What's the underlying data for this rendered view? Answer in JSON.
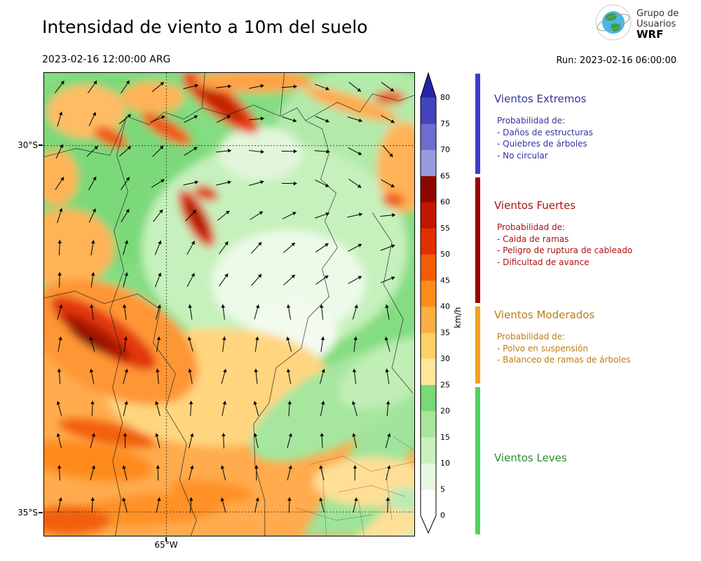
{
  "header": {
    "title": "Intensidad de viento a 10m del suelo",
    "valid_time": "2023-02-16 12:00:00 ARG",
    "run_label": "Run: 2023-02-16 06:00:00",
    "logo": {
      "line1": "Grupo de",
      "line2": "Usuarios",
      "line3": "WRF"
    }
  },
  "map": {
    "y_tick_labels": [
      "30°S",
      "35°S"
    ],
    "x_tick_label": "65°W"
  },
  "colorbar": {
    "unit": "km/h",
    "levels": [
      0,
      5,
      10,
      15,
      20,
      25,
      30,
      35,
      40,
      45,
      50,
      55,
      60,
      65,
      70,
      75,
      80
    ],
    "colors": [
      "#ffffff",
      "#e6f8df",
      "#c9f0bd",
      "#a8e69c",
      "#78d976",
      "#ffe699",
      "#ffd066",
      "#ffae42",
      "#ff8c1a",
      "#f25c05",
      "#e32f00",
      "#c21500",
      "#8f0600",
      "#9a9ae0",
      "#6d6dd0",
      "#4343bd"
    ],
    "over_color": "#2525a5",
    "under_color": "#ffffff"
  },
  "legend": {
    "sections": [
      {
        "title": "Vientos Extremos",
        "text_color": "#34349e",
        "bar_color": "#3c3ccc",
        "prob_header": "Probabilidad de:",
        "items": [
          "- Daños de estructuras",
          "- Quiebres de árboles",
          "- No circular"
        ]
      },
      {
        "title": "Vientos Fuertes",
        "text_color": "#ac1212",
        "bar_color": "#9b0000",
        "prob_header": "Probabilidad de:",
        "items": [
          "- Caida de ramas",
          "- Peligro de ruptura de cableado",
          "- Dificultad de avance"
        ]
      },
      {
        "title": "Vientos Moderados",
        "text_color": "#bd7c14",
        "bar_color": "#f5a11c",
        "prob_header": "Probabilidad de:",
        "items": [
          "- Polvo en suspensión",
          "- Balanceo de ramas de árboles"
        ]
      },
      {
        "title": "Vientos Leves",
        "text_color": "#2e8b2e",
        "bar_color": "#52d05c",
        "prob_header": "",
        "items": []
      }
    ]
  }
}
